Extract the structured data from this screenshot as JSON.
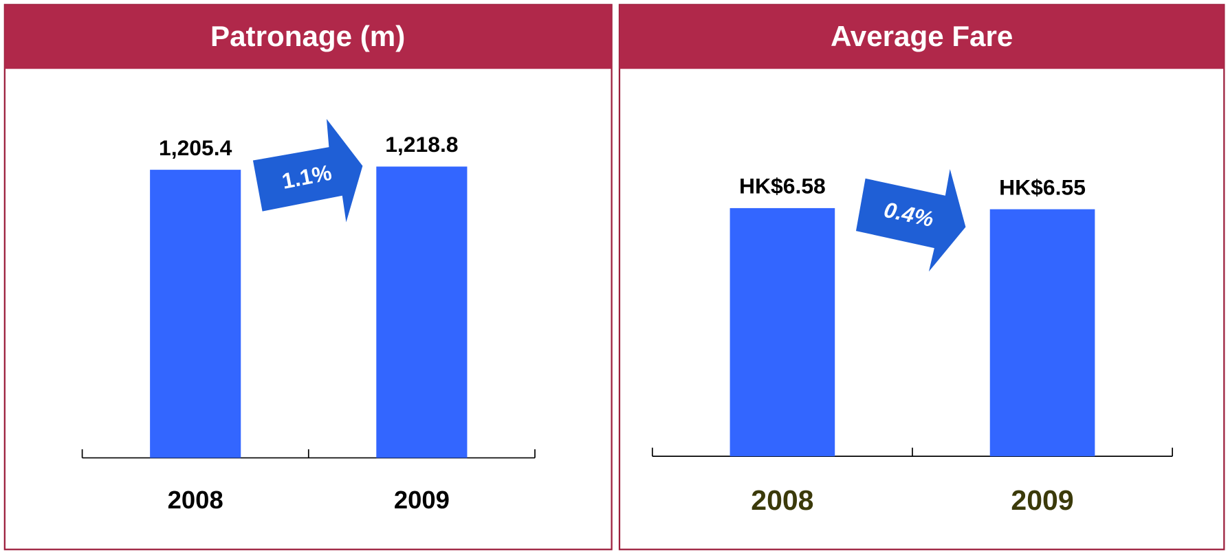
{
  "chart_data": [
    {
      "type": "bar",
      "title": "Patronage (m)",
      "categories": [
        "2008",
        "2009"
      ],
      "values": [
        1205.4,
        1218.8
      ],
      "value_labels": [
        "1,205.4",
        "1,218.8"
      ],
      "color": "#3366ff",
      "category_color": "#000000",
      "ylim": [
        0,
        1490
      ],
      "annotations": [
        "1.1%"
      ]
    },
    {
      "type": "bar",
      "title": "Average Fare",
      "categories": [
        "2008",
        "2009"
      ],
      "values": [
        6.58,
        6.55
      ],
      "value_labels": [
        "HK$6.58",
        "HK$6.55"
      ],
      "color": "#3366ff",
      "category_color": "#3b3a0a",
      "ylim": [
        0,
        9.4
      ],
      "annotations": [
        "0.4%"
      ]
    }
  ]
}
